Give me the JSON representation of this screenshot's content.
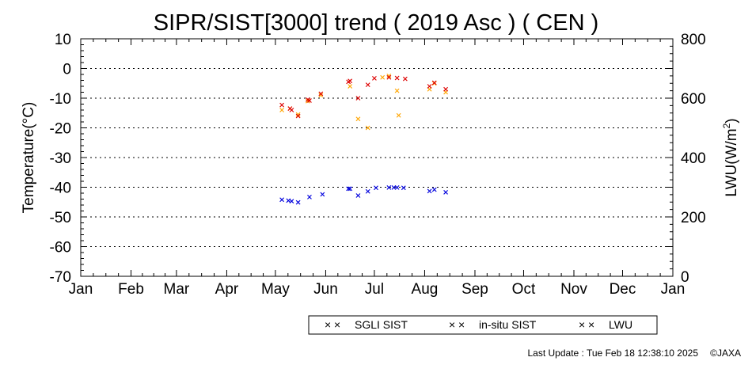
{
  "chart_data": {
    "type": "scatter",
    "title": "SIPR/SIST[3000] trend ( 2019 Asc ) ( CEN )",
    "ylabel": "Temperature(°C)",
    "y2label_main": "LWU(W/m",
    "y2label_sup": "2",
    "y2label_end": ")",
    "ylim": [
      -70,
      10
    ],
    "y2lim": [
      0,
      800
    ],
    "yticks": [
      "10",
      "0",
      "-10",
      "-20",
      "-30",
      "-40",
      "-50",
      "-60",
      "-70"
    ],
    "y2ticks": [
      "800",
      "600",
      "400",
      "200",
      "0"
    ],
    "xticks": [
      "Jan",
      "Feb",
      "Mar",
      "Apr",
      "May",
      "Jun",
      "Jul",
      "Aug",
      "Sep",
      "Oct",
      "Nov",
      "Dec",
      "Jan"
    ],
    "grid": "horizontal dotted",
    "legend": "bottom-center",
    "marker": "×",
    "series": [
      {
        "name": "SGLI SIST",
        "color": "#ffa500",
        "axis": "left",
        "x": [
          "2019-05-05",
          "2019-05-10",
          "2019-05-15",
          "2019-05-21",
          "2019-05-29",
          "2019-06-16",
          "2019-06-21",
          "2019-06-27",
          "2019-07-06",
          "2019-07-10",
          "2019-07-15",
          "2019-07-16",
          "2019-08-04",
          "2019-08-07",
          "2019-08-14"
        ],
        "values": [
          -14,
          -13.5,
          -15.5,
          -11,
          -9,
          -6,
          -17,
          -20,
          -3,
          -2.5,
          -7.5,
          -15.8,
          -7,
          -5,
          -8
        ]
      },
      {
        "name": "in-situ SIST",
        "color": "#dd0000",
        "axis": "left",
        "x": [
          "2019-05-05",
          "2019-05-10",
          "2019-05-11",
          "2019-05-15",
          "2019-05-21",
          "2019-05-22",
          "2019-05-29",
          "2019-06-15",
          "2019-06-16",
          "2019-06-21",
          "2019-06-27",
          "2019-07-01",
          "2019-07-10",
          "2019-07-15",
          "2019-07-20",
          "2019-08-04",
          "2019-08-07",
          "2019-08-14"
        ],
        "values": [
          -12.3,
          -13.5,
          -14,
          -16,
          -10.5,
          -10.8,
          -8.5,
          -4.5,
          -4.2,
          -10,
          -5.5,
          -3.3,
          -3,
          -3.2,
          -3.5,
          -6,
          -4.8,
          -7
        ]
      },
      {
        "name": "LWU",
        "color": "#0000dd",
        "axis": "right",
        "x": [
          "2019-05-05",
          "2019-05-09",
          "2019-05-11",
          "2019-05-15",
          "2019-05-22",
          "2019-05-30",
          "2019-06-15",
          "2019-06-16",
          "2019-06-21",
          "2019-06-27",
          "2019-07-02",
          "2019-07-10",
          "2019-07-13",
          "2019-07-15",
          "2019-07-19",
          "2019-08-04",
          "2019-08-07",
          "2019-08-14"
        ],
        "values": [
          258,
          255,
          253,
          249,
          267,
          276,
          295,
          295,
          272,
          286,
          298,
          299,
          299,
          299,
          298,
          287,
          292,
          283
        ]
      }
    ]
  },
  "footer": {
    "update": "Last Update : Tue Feb 18 12:38:10 2025",
    "copyright": "©JAXA"
  }
}
